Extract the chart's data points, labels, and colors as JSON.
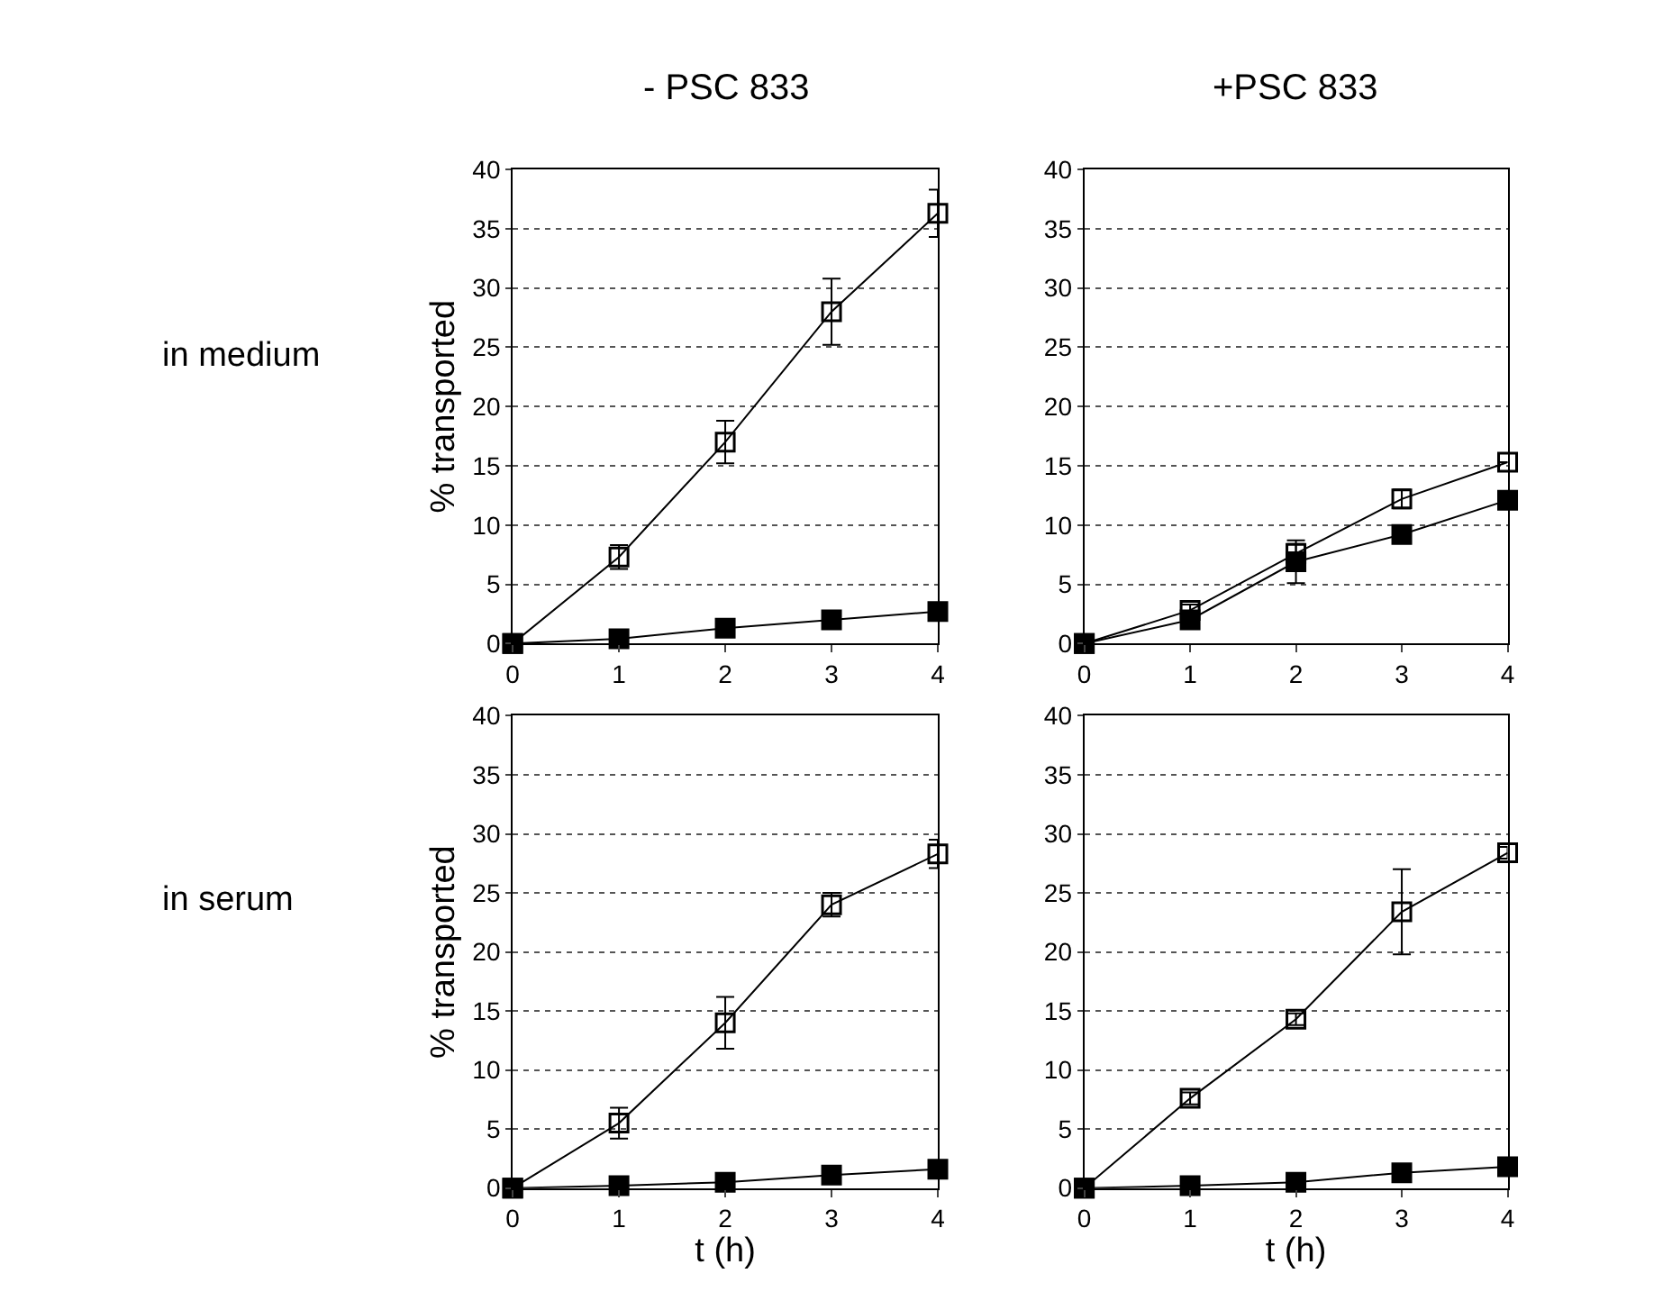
{
  "chart_data": [
    {
      "type": "line",
      "title": "- PSC 833",
      "ylabel": "% transported",
      "annotations": [
        "in medium"
      ],
      "x": [
        0,
        1,
        2,
        3,
        4
      ],
      "xlim": [
        0,
        4
      ],
      "xticks": [
        0,
        1,
        2,
        3,
        4
      ],
      "ylim": [
        0,
        40
      ],
      "yticks": [
        0,
        5,
        10,
        15,
        20,
        25,
        30,
        35,
        40
      ],
      "grid": "y",
      "series": [
        {
          "color": "#000000",
          "marker": "square-open",
          "values": [
            0,
            7.3,
            17,
            28,
            36.3
          ],
          "errors": [
            null,
            1,
            1.8,
            2.8,
            2
          ]
        },
        {
          "color": "#000000",
          "marker": "square",
          "values": [
            0,
            0.4,
            1.3,
            2,
            2.7
          ]
        }
      ]
    },
    {
      "type": "line",
      "title": "+PSC 833",
      "x": [
        0,
        1,
        2,
        3,
        4
      ],
      "xlim": [
        0,
        4
      ],
      "xticks": [
        0,
        1,
        2,
        3,
        4
      ],
      "ylim": [
        0,
        40
      ],
      "yticks": [
        0,
        5,
        10,
        15,
        20,
        25,
        30,
        35,
        40
      ],
      "grid": "y",
      "series": [
        {
          "color": "#000000",
          "marker": "square-open",
          "values": [
            0,
            2.8,
            7.6,
            12.2,
            15.3
          ],
          "errors": [
            null,
            0.5,
            0.8,
            0.8,
            null
          ]
        },
        {
          "color": "#000000",
          "marker": "square",
          "values": [
            0,
            2,
            6.9,
            9.2,
            12.1
          ],
          "errors": [
            null,
            null,
            1.8,
            null,
            null
          ]
        }
      ]
    },
    {
      "type": "line",
      "xlabel": "t (h)",
      "ylabel": "% transported",
      "annotations": [
        "in serum"
      ],
      "x": [
        0,
        1,
        2,
        3,
        4
      ],
      "xlim": [
        0,
        4
      ],
      "xticks": [
        0,
        1,
        2,
        3,
        4
      ],
      "ylim": [
        0,
        40
      ],
      "yticks": [
        0,
        5,
        10,
        15,
        20,
        25,
        30,
        35,
        40
      ],
      "grid": "y",
      "series": [
        {
          "color": "#000000",
          "marker": "square-open",
          "values": [
            0,
            5.5,
            14,
            24,
            28.3
          ],
          "errors": [
            null,
            1.3,
            2.2,
            1,
            1.2
          ]
        },
        {
          "color": "#000000",
          "marker": "square",
          "values": [
            0,
            0.2,
            0.5,
            1.1,
            1.6
          ]
        }
      ]
    },
    {
      "type": "line",
      "xlabel": "t (h)",
      "x": [
        0,
        1,
        2,
        3,
        4
      ],
      "xlim": [
        0,
        4
      ],
      "xticks": [
        0,
        1,
        2,
        3,
        4
      ],
      "ylim": [
        0,
        40
      ],
      "yticks": [
        0,
        5,
        10,
        15,
        20,
        25,
        30,
        35,
        40
      ],
      "grid": "y",
      "series": [
        {
          "color": "#000000",
          "marker": "square-open",
          "values": [
            0,
            7.6,
            14.3,
            23.4,
            28.4
          ],
          "errors": [
            null,
            0.5,
            0.5,
            3.6,
            0.5
          ]
        },
        {
          "color": "#000000",
          "marker": "square",
          "values": [
            0,
            0.2,
            0.5,
            1.3,
            1.8
          ]
        }
      ]
    }
  ]
}
